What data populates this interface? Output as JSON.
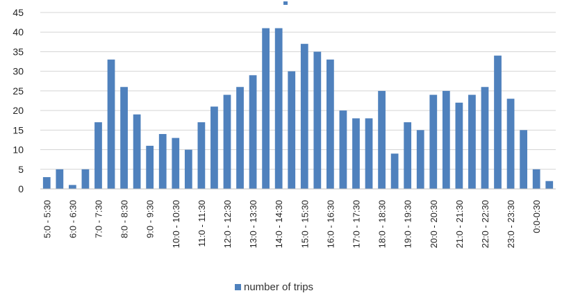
{
  "chart_data": {
    "type": "bar",
    "title": "",
    "xlabel": "",
    "ylabel": "",
    "ylim": [
      0,
      45
    ],
    "yticks": [
      0,
      5,
      10,
      15,
      20,
      25,
      30,
      35,
      40,
      45
    ],
    "grid": true,
    "legend_position": "bottom",
    "bar_color": "#4f81bd",
    "categories": [
      "5:0 - 5:30",
      "",
      "6:0 - 6:30",
      "",
      "7:0 - 7:30",
      "",
      "8:0 - 8:30",
      "",
      "9:0 - 9:30",
      "",
      "10:0 - 10:30",
      "",
      "11:0 - 11:30",
      "",
      "12:0 - 12:30",
      "",
      "13:0 - 13:30",
      "",
      "14:0 - 14:30",
      "",
      "15:0 - 15:30",
      "",
      "16:0 - 16:30",
      "",
      "17:0 - 17:30",
      "",
      "18:0 - 18:30",
      "",
      "19:0 - 19:30",
      "",
      "20:0 - 20:30",
      "",
      "21:0 - 21:30",
      "",
      "22:0 - 22:30",
      "",
      "23:0 - 23:30",
      "",
      "0:0-0:30",
      ""
    ],
    "series": [
      {
        "name": "number of trips",
        "values": [
          3,
          5,
          1,
          5,
          17,
          33,
          26,
          19,
          11,
          14,
          13,
          10,
          17,
          21,
          24,
          26,
          29,
          41,
          41,
          30,
          37,
          35,
          33,
          20,
          18,
          18,
          25,
          9,
          17,
          15,
          24,
          25,
          22,
          24,
          26,
          34,
          23,
          15,
          5,
          2
        ]
      }
    ]
  }
}
